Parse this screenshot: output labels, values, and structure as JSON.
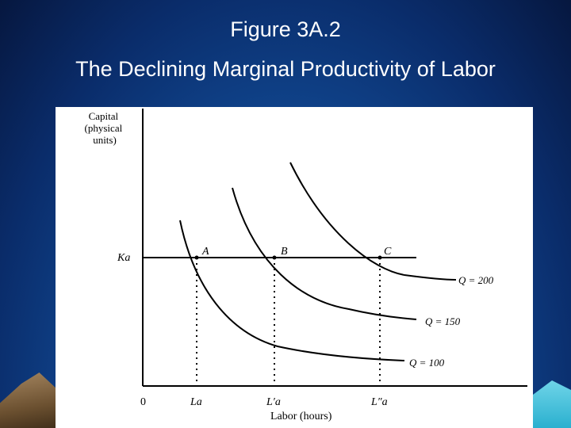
{
  "slide": {
    "title": "Figure 3A.2",
    "subtitle": "The Declining Marginal Productivity of Labor"
  },
  "colors": {
    "background": "#0d3c86",
    "title_text": "#ffffff",
    "panel": "#ffffff"
  },
  "diagram": {
    "y_axis_label": [
      "Capital",
      "(physical",
      "units)"
    ],
    "x_axis_label": "Labor (hours)",
    "origin_label": "0",
    "capital_level_label": "Ka",
    "labor_tick_labels": [
      "La",
      "L′a",
      "L″a"
    ],
    "points": [
      "A",
      "B",
      "C"
    ],
    "isoquant_labels": [
      "Q = 100",
      "Q = 150",
      "Q = 200"
    ]
  }
}
